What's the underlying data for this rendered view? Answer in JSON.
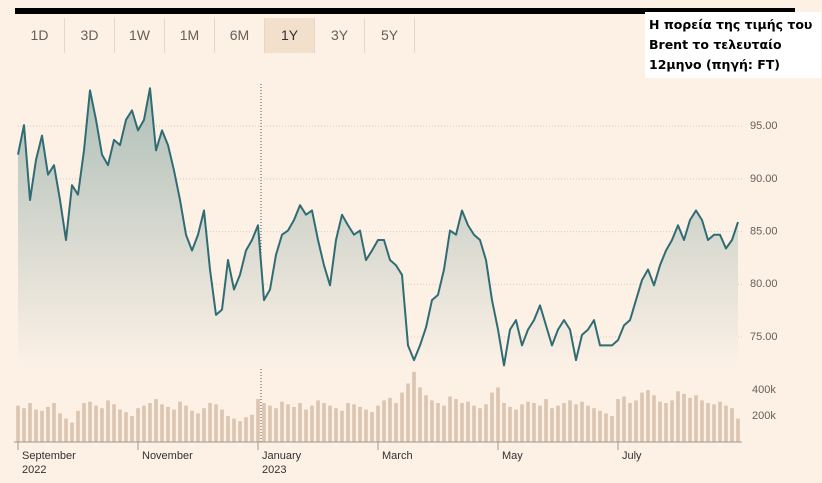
{
  "tabs": [
    "1D",
    "3D",
    "1W",
    "1M",
    "6M",
    "1Y",
    "3Y",
    "5Y"
  ],
  "selected_tab": "1Y",
  "annotation": "Η πορεία της τιμής του Brent το τελευταίο 12μηνο (πηγή: FT)",
  "chart_data": [
    {
      "type": "line",
      "color": "#2f6c74",
      "grid": true,
      "categories": [
        "September 2022",
        null,
        null,
        null,
        null,
        null,
        null,
        null,
        null,
        null,
        null,
        null,
        null,
        null,
        null,
        null,
        null,
        null,
        null,
        null,
        "November",
        null,
        null,
        null,
        null,
        null,
        null,
        null,
        null,
        null,
        null,
        null,
        null,
        null,
        null,
        null,
        null,
        null,
        null,
        null,
        "January 2023",
        null,
        null,
        null,
        null,
        null,
        null,
        null,
        null,
        null,
        null,
        null,
        null,
        null,
        null,
        null,
        null,
        null,
        null,
        null,
        "March",
        null,
        null,
        null,
        null,
        null,
        null,
        null,
        null,
        null,
        null,
        null,
        null,
        null,
        null,
        null,
        null,
        null,
        null,
        null,
        "May",
        null,
        null,
        null,
        null,
        null,
        null,
        null,
        null,
        null,
        null,
        null,
        null,
        null,
        null,
        null,
        null,
        null,
        null,
        null,
        "July",
        null,
        null,
        null,
        null,
        null,
        null,
        null,
        null,
        null,
        null,
        null,
        null,
        null,
        null,
        null,
        null,
        null,
        null,
        null,
        null
      ],
      "values": [
        92.3,
        95.1,
        88,
        91.8,
        94.1,
        90.4,
        91.3,
        88,
        84.2,
        89.4,
        88.5,
        92.7,
        98.4,
        95.6,
        92.3,
        91.3,
        93.7,
        93.2,
        95.6,
        96.5,
        94.6,
        95.6,
        98.6,
        92.7,
        94.6,
        93.2,
        90.8,
        88,
        84.7,
        83.2,
        84.7,
        87,
        81.4,
        77.1,
        77.6,
        82.3,
        79.5,
        80.9,
        83.2,
        84.2,
        85.6,
        78.5,
        79.5,
        82.8,
        84.7,
        85.1,
        86.1,
        87.5,
        86.6,
        87,
        84.2,
        81.8,
        79.9,
        84.2,
        86.6,
        85.6,
        84.7,
        85.1,
        82.3,
        83.2,
        84.2,
        84.2,
        82.3,
        81.8,
        80.9,
        74.2,
        72.8,
        74.2,
        75.9,
        78.5,
        79,
        81.4,
        85.1,
        84.7,
        87,
        85.6,
        84.7,
        84.2,
        82.3,
        78.5,
        75.7,
        72.3,
        75.7,
        76.6,
        74.2,
        75.7,
        76.6,
        78,
        76.1,
        74.2,
        75.7,
        76.6,
        75.7,
        72.8,
        75.2,
        75.7,
        76.6,
        74.2,
        74.2,
        74.2,
        74.7,
        76.1,
        76.6,
        78.5,
        80.4,
        81.4,
        79.9,
        81.8,
        83.2,
        84.2,
        85.6,
        84.2,
        86.1,
        87,
        86.1,
        84.2,
        84.7,
        84.7,
        83.4,
        84.2,
        85.9
      ],
      "ylim": [
        72,
        99
      ],
      "yticks": [
        {
          "value": 75,
          "label": "75.00"
        },
        {
          "value": 80,
          "label": "80.00"
        },
        {
          "value": 85,
          "label": "85.00"
        },
        {
          "value": 90,
          "label": "90.00"
        },
        {
          "value": 95,
          "label": "95.00"
        }
      ]
    },
    {
      "type": "bar",
      "color": "#dbc4b0",
      "values": [
        280000,
        260000,
        300000,
        250000,
        240000,
        270000,
        300000,
        220000,
        180000,
        150000,
        240000,
        300000,
        310000,
        280000,
        260000,
        320000,
        290000,
        250000,
        230000,
        200000,
        260000,
        280000,
        300000,
        330000,
        290000,
        270000,
        250000,
        310000,
        280000,
        240000,
        220000,
        260000,
        300000,
        290000,
        250000,
        200000,
        180000,
        160000,
        190000,
        210000,
        330000,
        300000,
        280000,
        260000,
        310000,
        290000,
        270000,
        300000,
        250000,
        280000,
        320000,
        300000,
        280000,
        260000,
        240000,
        300000,
        290000,
        270000,
        250000,
        230000,
        280000,
        320000,
        340000,
        300000,
        380000,
        450000,
        540000,
        420000,
        360000,
        320000,
        300000,
        280000,
        350000,
        330000,
        300000,
        310000,
        280000,
        260000,
        290000,
        380000,
        420000,
        300000,
        270000,
        250000,
        290000,
        310000,
        300000,
        280000,
        330000,
        260000,
        280000,
        300000,
        320000,
        290000,
        310000,
        280000,
        260000,
        240000,
        220000,
        200000,
        330000,
        350000,
        300000,
        320000,
        380000,
        400000,
        360000,
        310000,
        300000,
        320000,
        390000,
        370000,
        340000,
        360000,
        320000,
        300000,
        290000,
        310000,
        280000,
        260000,
        180000
      ],
      "ylim": [
        0,
        550000
      ],
      "yticks": [
        {
          "value": 200000,
          "label": "200k"
        },
        {
          "value": 400000,
          "label": "400k"
        }
      ]
    }
  ]
}
